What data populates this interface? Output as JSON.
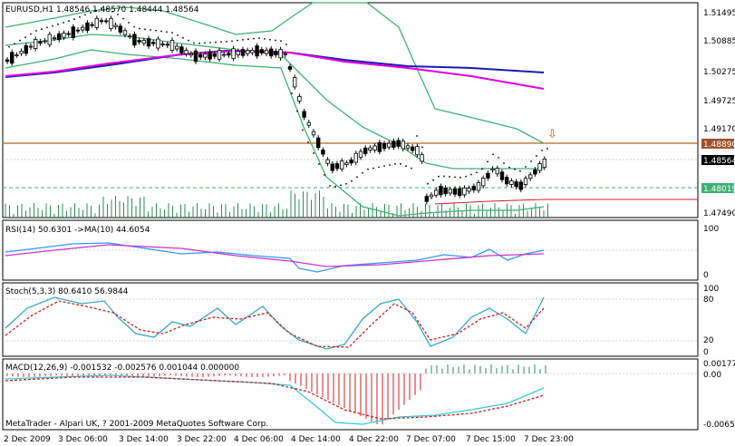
{
  "colors": {
    "bollinger": "#3cb371",
    "ma_fast": "#e000e0",
    "ma_slow": "#1c1cb0",
    "hline": "#b5651d",
    "volume": "#2e8b57",
    "rsi": "#3399ff",
    "rsi_ma": "#cc33cc",
    "stoch_main": "#33aacc",
    "stoch_signal": "#cc2222",
    "macd_pos": "#2e8b57",
    "macd_neg": "#cc2222",
    "macd_signal": "#33ccdd",
    "macd_signal_dash": "#cc2222",
    "price_tag_bg": "#000000",
    "level_tag_bg": "#a0522d",
    "green_tag_bg": "#3cb371"
  },
  "main": {
    "header": "EURUSD,H1  1.48546 1.48570 1.48444 1.48564",
    "arrow_marker": "⇩",
    "price_axis": [
      "1.51495",
      "1.50885",
      "1.50275",
      "1.49725",
      "1.49170",
      "1.48564",
      "1.47490"
    ],
    "tags": {
      "level": "1.48890",
      "current": "1.48564",
      "green": "1.48019"
    }
  },
  "rsi": {
    "header": "RSI(14) 50.6301  ->MA(10) 44.6054",
    "axis": [
      "100",
      "0"
    ]
  },
  "stoch": {
    "header": "Stoch(5,3,3) 80.6410 56.9844",
    "axis": [
      "100",
      "80",
      "20",
      "0"
    ]
  },
  "macd": {
    "header": "MACD(12,26,9) -0.001532 -0.002576 0.001044 0.000000",
    "axis": [
      "0.00177",
      "0.00",
      "-0.00650"
    ],
    "copyright": "MetaTrader - Alpari UK, ? 2001-2009 MetaQuotes Software Corp."
  },
  "time_axis": [
    "2 Dec 2009",
    "3 Dec 06:00",
    "3 Dec 14:00",
    "3 Dec 22:00",
    "4 Dec 06:00",
    "4 Dec 14:00",
    "4 Dec 22:00",
    "7 Dec 07:00",
    "7 Dec 15:00",
    "7 Dec 23:00"
  ]
}
